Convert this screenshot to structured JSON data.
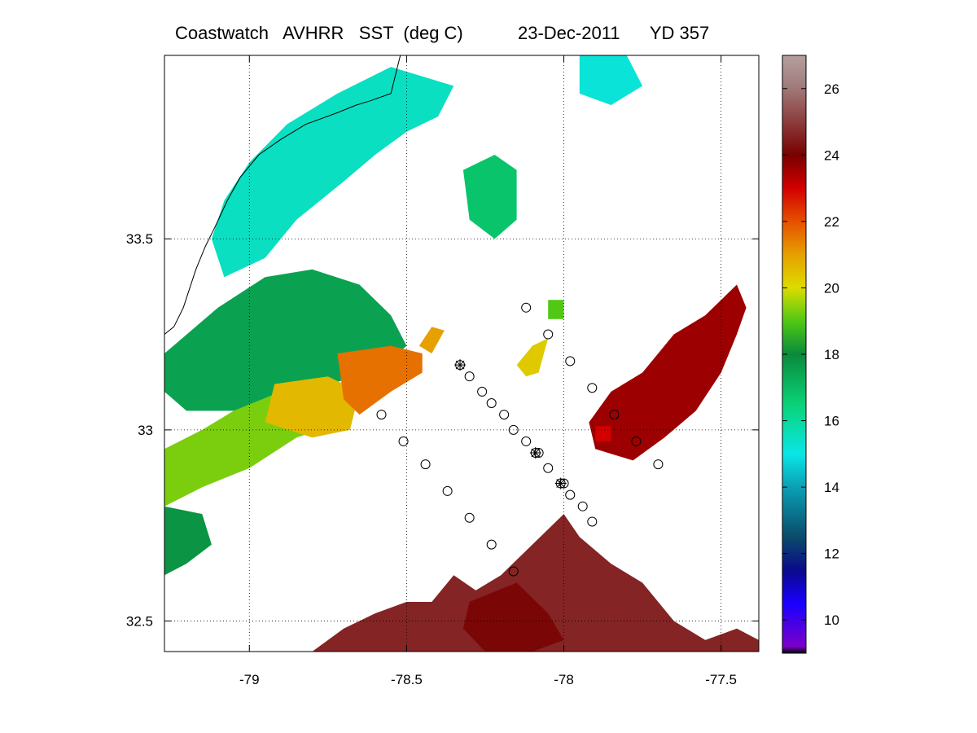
{
  "title": {
    "text": "Coastwatch   AVHRR   SST  (deg C)           23-Dec-2011      YD 357"
  },
  "map": {
    "lon_range": [
      -79.27,
      -77.38
    ],
    "lat_range": [
      32.42,
      33.98
    ],
    "lon_ticks": [
      {
        "value": -79,
        "label": "-79"
      },
      {
        "value": -78.5,
        "label": "-78.5"
      },
      {
        "value": -78,
        "label": "-78"
      },
      {
        "value": -77.5,
        "label": "-77.5"
      }
    ],
    "lat_ticks": [
      {
        "value": 33.5,
        "label": "33.5"
      },
      {
        "value": 33,
        "label": "33"
      },
      {
        "value": 32.5,
        "label": "32.5"
      }
    ],
    "grid": "dotted",
    "coastline": [
      [
        -78.52,
        33.98
      ],
      [
        -78.55,
        33.88
      ],
      [
        -78.62,
        33.86
      ],
      [
        -78.66,
        33.85
      ],
      [
        -78.72,
        33.83
      ],
      [
        -78.82,
        33.8
      ],
      [
        -78.9,
        33.76
      ],
      [
        -78.97,
        33.72
      ],
      [
        -79.03,
        33.66
      ],
      [
        -79.07,
        33.6
      ],
      [
        -79.11,
        33.53
      ],
      [
        -79.14,
        33.48
      ],
      [
        -79.17,
        33.42
      ],
      [
        -79.19,
        33.37
      ],
      [
        -79.21,
        33.32
      ],
      [
        -79.24,
        33.27
      ],
      [
        -79.27,
        33.25
      ]
    ],
    "sst_patches": [
      {
        "value": 15.5,
        "points": [
          [
            -78.55,
            33.95
          ],
          [
            -78.72,
            33.88
          ],
          [
            -78.88,
            33.8
          ],
          [
            -79.0,
            33.7
          ],
          [
            -79.08,
            33.6
          ],
          [
            -79.12,
            33.5
          ],
          [
            -79.08,
            33.4
          ],
          [
            -78.95,
            33.45
          ],
          [
            -78.85,
            33.55
          ],
          [
            -78.7,
            33.65
          ],
          [
            -78.6,
            33.72
          ],
          [
            -78.5,
            33.78
          ],
          [
            -78.4,
            33.82
          ],
          [
            -78.35,
            33.9
          ]
        ]
      },
      {
        "value": 15.2,
        "points": [
          [
            -77.95,
            33.98
          ],
          [
            -77.8,
            33.98
          ],
          [
            -77.75,
            33.9
          ],
          [
            -77.85,
            33.85
          ],
          [
            -77.95,
            33.88
          ]
        ]
      },
      {
        "value": 16.8,
        "points": [
          [
            -78.32,
            33.68
          ],
          [
            -78.22,
            33.72
          ],
          [
            -78.15,
            33.68
          ],
          [
            -78.15,
            33.55
          ],
          [
            -78.22,
            33.5
          ],
          [
            -78.3,
            33.55
          ]
        ]
      },
      {
        "value": 17.5,
        "points": [
          [
            -79.1,
            33.32
          ],
          [
            -78.95,
            33.4
          ],
          [
            -78.8,
            33.42
          ],
          [
            -78.65,
            33.38
          ],
          [
            -78.55,
            33.3
          ],
          [
            -78.5,
            33.22
          ],
          [
            -78.6,
            33.15
          ],
          [
            -78.75,
            33.12
          ],
          [
            -78.9,
            33.08
          ],
          [
            -79.05,
            33.05
          ],
          [
            -79.2,
            33.05
          ],
          [
            -79.27,
            33.1
          ],
          [
            -79.27,
            33.2
          ]
        ]
      },
      {
        "value": 19.3,
        "points": [
          [
            -79.05,
            33.05
          ],
          [
            -78.9,
            33.1
          ],
          [
            -78.75,
            33.08
          ],
          [
            -78.7,
            33.02
          ],
          [
            -78.85,
            32.98
          ],
          [
            -79.0,
            32.9
          ],
          [
            -79.15,
            32.85
          ],
          [
            -79.27,
            32.8
          ],
          [
            -79.27,
            32.95
          ],
          [
            -79.15,
            33.0
          ]
        ]
      },
      {
        "value": 17.8,
        "points": [
          [
            -79.27,
            32.8
          ],
          [
            -79.15,
            32.78
          ],
          [
            -79.12,
            32.7
          ],
          [
            -79.2,
            32.65
          ],
          [
            -79.27,
            32.62
          ]
        ]
      },
      {
        "value": 20.6,
        "points": [
          [
            -78.92,
            33.12
          ],
          [
            -78.75,
            33.14
          ],
          [
            -78.65,
            33.1
          ],
          [
            -78.68,
            33.0
          ],
          [
            -78.8,
            32.98
          ],
          [
            -78.95,
            33.02
          ]
        ]
      },
      {
        "value": 21.6,
        "points": [
          [
            -78.72,
            33.2
          ],
          [
            -78.55,
            33.22
          ],
          [
            -78.45,
            33.2
          ],
          [
            -78.45,
            33.15
          ],
          [
            -78.55,
            33.1
          ],
          [
            -78.65,
            33.04
          ],
          [
            -78.7,
            33.08
          ]
        ]
      },
      {
        "value": 21.0,
        "points": [
          [
            -78.42,
            33.27
          ],
          [
            -78.38,
            33.26
          ],
          [
            -78.42,
            33.2
          ],
          [
            -78.46,
            33.22
          ]
        ]
      },
      {
        "value": 20.3,
        "points": [
          [
            -78.1,
            33.22
          ],
          [
            -78.05,
            33.24
          ],
          [
            -78.08,
            33.15
          ],
          [
            -78.12,
            33.14
          ],
          [
            -78.15,
            33.17
          ]
        ]
      },
      {
        "value": 19.0,
        "points": [
          [
            -78.05,
            33.34
          ],
          [
            -78.0,
            33.34
          ],
          [
            -78.0,
            33.29
          ],
          [
            -78.05,
            33.29
          ]
        ]
      },
      {
        "value": 23.6,
        "points": [
          [
            -77.45,
            33.38
          ],
          [
            -77.55,
            33.3
          ],
          [
            -77.65,
            33.25
          ],
          [
            -77.75,
            33.15
          ],
          [
            -77.85,
            33.1
          ],
          [
            -77.92,
            33.02
          ],
          [
            -77.9,
            32.95
          ],
          [
            -77.78,
            32.92
          ],
          [
            -77.68,
            32.98
          ],
          [
            -77.58,
            33.05
          ],
          [
            -77.5,
            33.15
          ],
          [
            -77.45,
            33.25
          ],
          [
            -77.42,
            33.32
          ]
        ]
      },
      {
        "value": 24.6,
        "points": [
          [
            -78.42,
            32.55
          ],
          [
            -78.35,
            32.62
          ],
          [
            -78.28,
            32.58
          ],
          [
            -78.2,
            32.62
          ],
          [
            -78.1,
            32.7
          ],
          [
            -78.0,
            32.78
          ],
          [
            -77.95,
            32.72
          ],
          [
            -77.85,
            32.65
          ],
          [
            -77.75,
            32.6
          ],
          [
            -77.65,
            32.5
          ],
          [
            -77.55,
            32.45
          ],
          [
            -77.45,
            32.48
          ],
          [
            -77.38,
            32.45
          ],
          [
            -77.38,
            32.42
          ],
          [
            -78.8,
            32.42
          ],
          [
            -78.7,
            32.48
          ],
          [
            -78.6,
            32.52
          ],
          [
            -78.5,
            32.55
          ]
        ]
      },
      {
        "value": 24.1,
        "points": [
          [
            -78.3,
            32.55
          ],
          [
            -78.15,
            32.6
          ],
          [
            -78.05,
            32.52
          ],
          [
            -78.0,
            32.45
          ],
          [
            -78.1,
            32.42
          ],
          [
            -78.25,
            32.42
          ],
          [
            -78.32,
            32.48
          ]
        ]
      },
      {
        "value": 23.0,
        "points": [
          [
            -77.9,
            33.01
          ],
          [
            -77.85,
            33.01
          ],
          [
            -77.85,
            32.97
          ],
          [
            -77.9,
            32.97
          ]
        ]
      }
    ],
    "stations": [
      {
        "lon": -78.33,
        "lat": 33.17,
        "star": true
      },
      {
        "lon": -78.3,
        "lat": 33.14,
        "star": false
      },
      {
        "lon": -78.26,
        "lat": 33.1,
        "star": false
      },
      {
        "lon": -78.23,
        "lat": 33.07,
        "star": false
      },
      {
        "lon": -78.19,
        "lat": 33.04,
        "star": false
      },
      {
        "lon": -78.16,
        "lat": 33.0,
        "star": false
      },
      {
        "lon": -78.12,
        "lat": 32.97,
        "star": false
      },
      {
        "lon": -78.09,
        "lat": 32.94,
        "star": true
      },
      {
        "lon": -78.08,
        "lat": 32.94,
        "star": false
      },
      {
        "lon": -78.05,
        "lat": 32.9,
        "star": false
      },
      {
        "lon": -78.01,
        "lat": 32.86,
        "star": true
      },
      {
        "lon": -78.0,
        "lat": 32.86,
        "star": false
      },
      {
        "lon": -77.98,
        "lat": 32.83,
        "star": false
      },
      {
        "lon": -77.94,
        "lat": 32.8,
        "star": false
      },
      {
        "lon": -77.91,
        "lat": 32.76,
        "star": false
      },
      {
        "lon": -78.12,
        "lat": 33.32,
        "star": false
      },
      {
        "lon": -78.05,
        "lat": 33.25,
        "star": false
      },
      {
        "lon": -77.98,
        "lat": 33.18,
        "star": false
      },
      {
        "lon": -77.91,
        "lat": 33.11,
        "star": false
      },
      {
        "lon": -77.84,
        "lat": 33.04,
        "star": false
      },
      {
        "lon": -77.77,
        "lat": 32.97,
        "star": false
      },
      {
        "lon": -77.7,
        "lat": 32.91,
        "star": false
      },
      {
        "lon": -78.58,
        "lat": 33.04,
        "star": false
      },
      {
        "lon": -78.51,
        "lat": 32.97,
        "star": false
      },
      {
        "lon": -78.44,
        "lat": 32.91,
        "star": false
      },
      {
        "lon": -78.37,
        "lat": 32.84,
        "star": false
      },
      {
        "lon": -78.3,
        "lat": 32.77,
        "star": false
      },
      {
        "lon": -78.23,
        "lat": 32.7,
        "star": false
      },
      {
        "lon": -78.16,
        "lat": 32.63,
        "star": false
      }
    ]
  },
  "colorbar": {
    "min": 9,
    "max": 27,
    "ticks": [
      {
        "value": 10,
        "label": "10"
      },
      {
        "value": 12,
        "label": "12"
      },
      {
        "value": 14,
        "label": "14"
      },
      {
        "value": 16,
        "label": "16"
      },
      {
        "value": 18,
        "label": "18"
      },
      {
        "value": 20,
        "label": "20"
      },
      {
        "value": 22,
        "label": "22"
      },
      {
        "value": 24,
        "label": "24"
      },
      {
        "value": 26,
        "label": "26"
      }
    ],
    "stops": [
      {
        "value": 9,
        "color": "#000000"
      },
      {
        "value": 9.2,
        "color": "#7a00c8"
      },
      {
        "value": 10.5,
        "color": "#1a00ff"
      },
      {
        "value": 11.5,
        "color": "#0a0a8a"
      },
      {
        "value": 12.5,
        "color": "#0a4b6a"
      },
      {
        "value": 14,
        "color": "#0aa0b4"
      },
      {
        "value": 15,
        "color": "#0ae6e6"
      },
      {
        "value": 16.5,
        "color": "#0ad278"
      },
      {
        "value": 18,
        "color": "#0a8a3c"
      },
      {
        "value": 19,
        "color": "#50c814"
      },
      {
        "value": 20,
        "color": "#dcdc00"
      },
      {
        "value": 21,
        "color": "#e6a000"
      },
      {
        "value": 22,
        "color": "#e65000"
      },
      {
        "value": 23,
        "color": "#d20000"
      },
      {
        "value": 24,
        "color": "#780000"
      },
      {
        "value": 25,
        "color": "#8c3c3c"
      },
      {
        "value": 26,
        "color": "#a07878"
      },
      {
        "value": 27,
        "color": "#b4a0a0"
      }
    ]
  }
}
